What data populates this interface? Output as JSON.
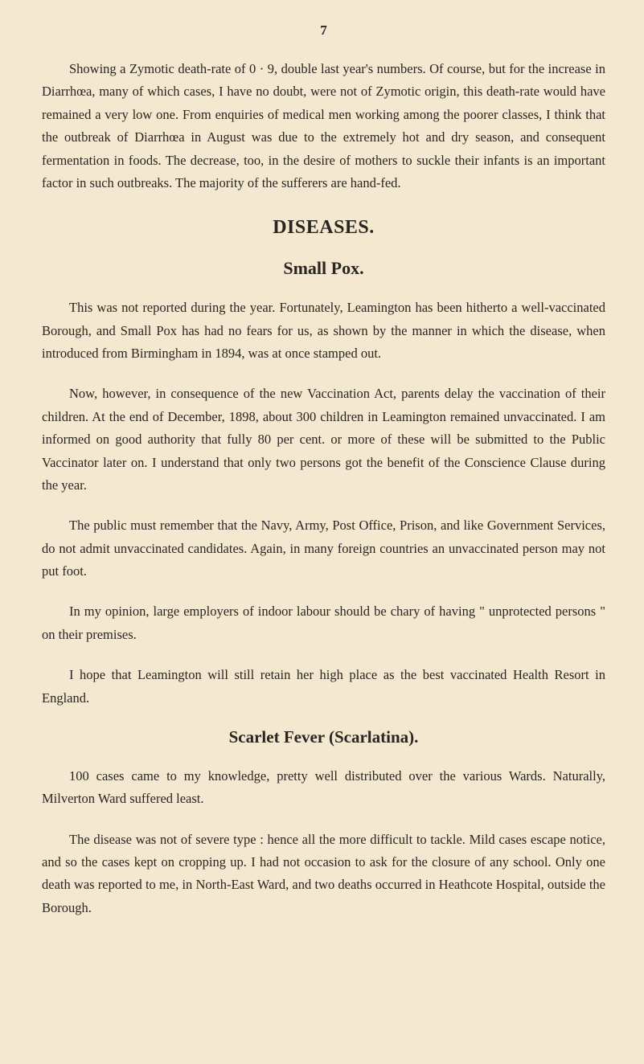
{
  "page": {
    "number": "7",
    "background_color": "#f5e8d0",
    "text_color": "#2a2520"
  },
  "paragraphs": {
    "intro": "Showing a Zymotic death-rate of 0 · 9, double last year's numbers. Of course, but for the increase in Diarrhœa, many of which cases, I have no doubt, were not of Zymotic origin, this death-rate would have remained a very low one. From enquiries of medical men working among the poorer classes, I think that the outbreak of Diarrhœa in August was due to the extremely hot and dry season, and consequent fermentation in foods. The decrease, too, in the desire of mothers to suckle their infants is an important factor in such outbreaks. The majority of the sufferers are hand-fed."
  },
  "headings": {
    "diseases": "DISEASES.",
    "smallpox": "Small Pox.",
    "scarlet": "Scarlet Fever (Scarlatina)."
  },
  "smallpox": {
    "p1": "This was not reported during the year. Fortunately, Leamington has been hitherto a well-vaccinated Borough, and Small Pox has had no fears for us, as shown by the manner in which the disease, when introduced from Birmingham in 1894, was at once stamped out.",
    "p2": "Now, however, in consequence of the new Vaccination Act, parents delay the vaccination of their children. At the end of December, 1898, about 300 children in Leamington remained unvaccinated. I am informed on good authority that fully 80 per cent. or more of these will be submitted to the Public Vaccinator later on. I understand that only two persons got the benefit of the Conscience Clause during the year.",
    "p3": "The public must remember that the Navy, Army, Post Office, Prison, and like Government Services, do not admit unvaccinated candidates. Again, in many foreign countries an unvaccinated person may not put foot.",
    "p4": "In my opinion, large employers of indoor labour should be chary of having \" unprotected persons \" on their premises.",
    "p5": "I hope that Leamington will still retain her high place as the best vaccinated Health Resort in England."
  },
  "scarlet": {
    "p1": "100 cases came to my knowledge, pretty well distributed over the various Wards. Naturally, Milverton Ward suffered least.",
    "p2": "The disease was not of severe type : hence all the more difficult to tackle. Mild cases escape notice, and so the cases kept on cropping up. I had not occasion to ask for the closure of any school. Only one death was reported to me, in North-East Ward, and two deaths occurred in Heathcote Hospital, outside the Borough."
  }
}
